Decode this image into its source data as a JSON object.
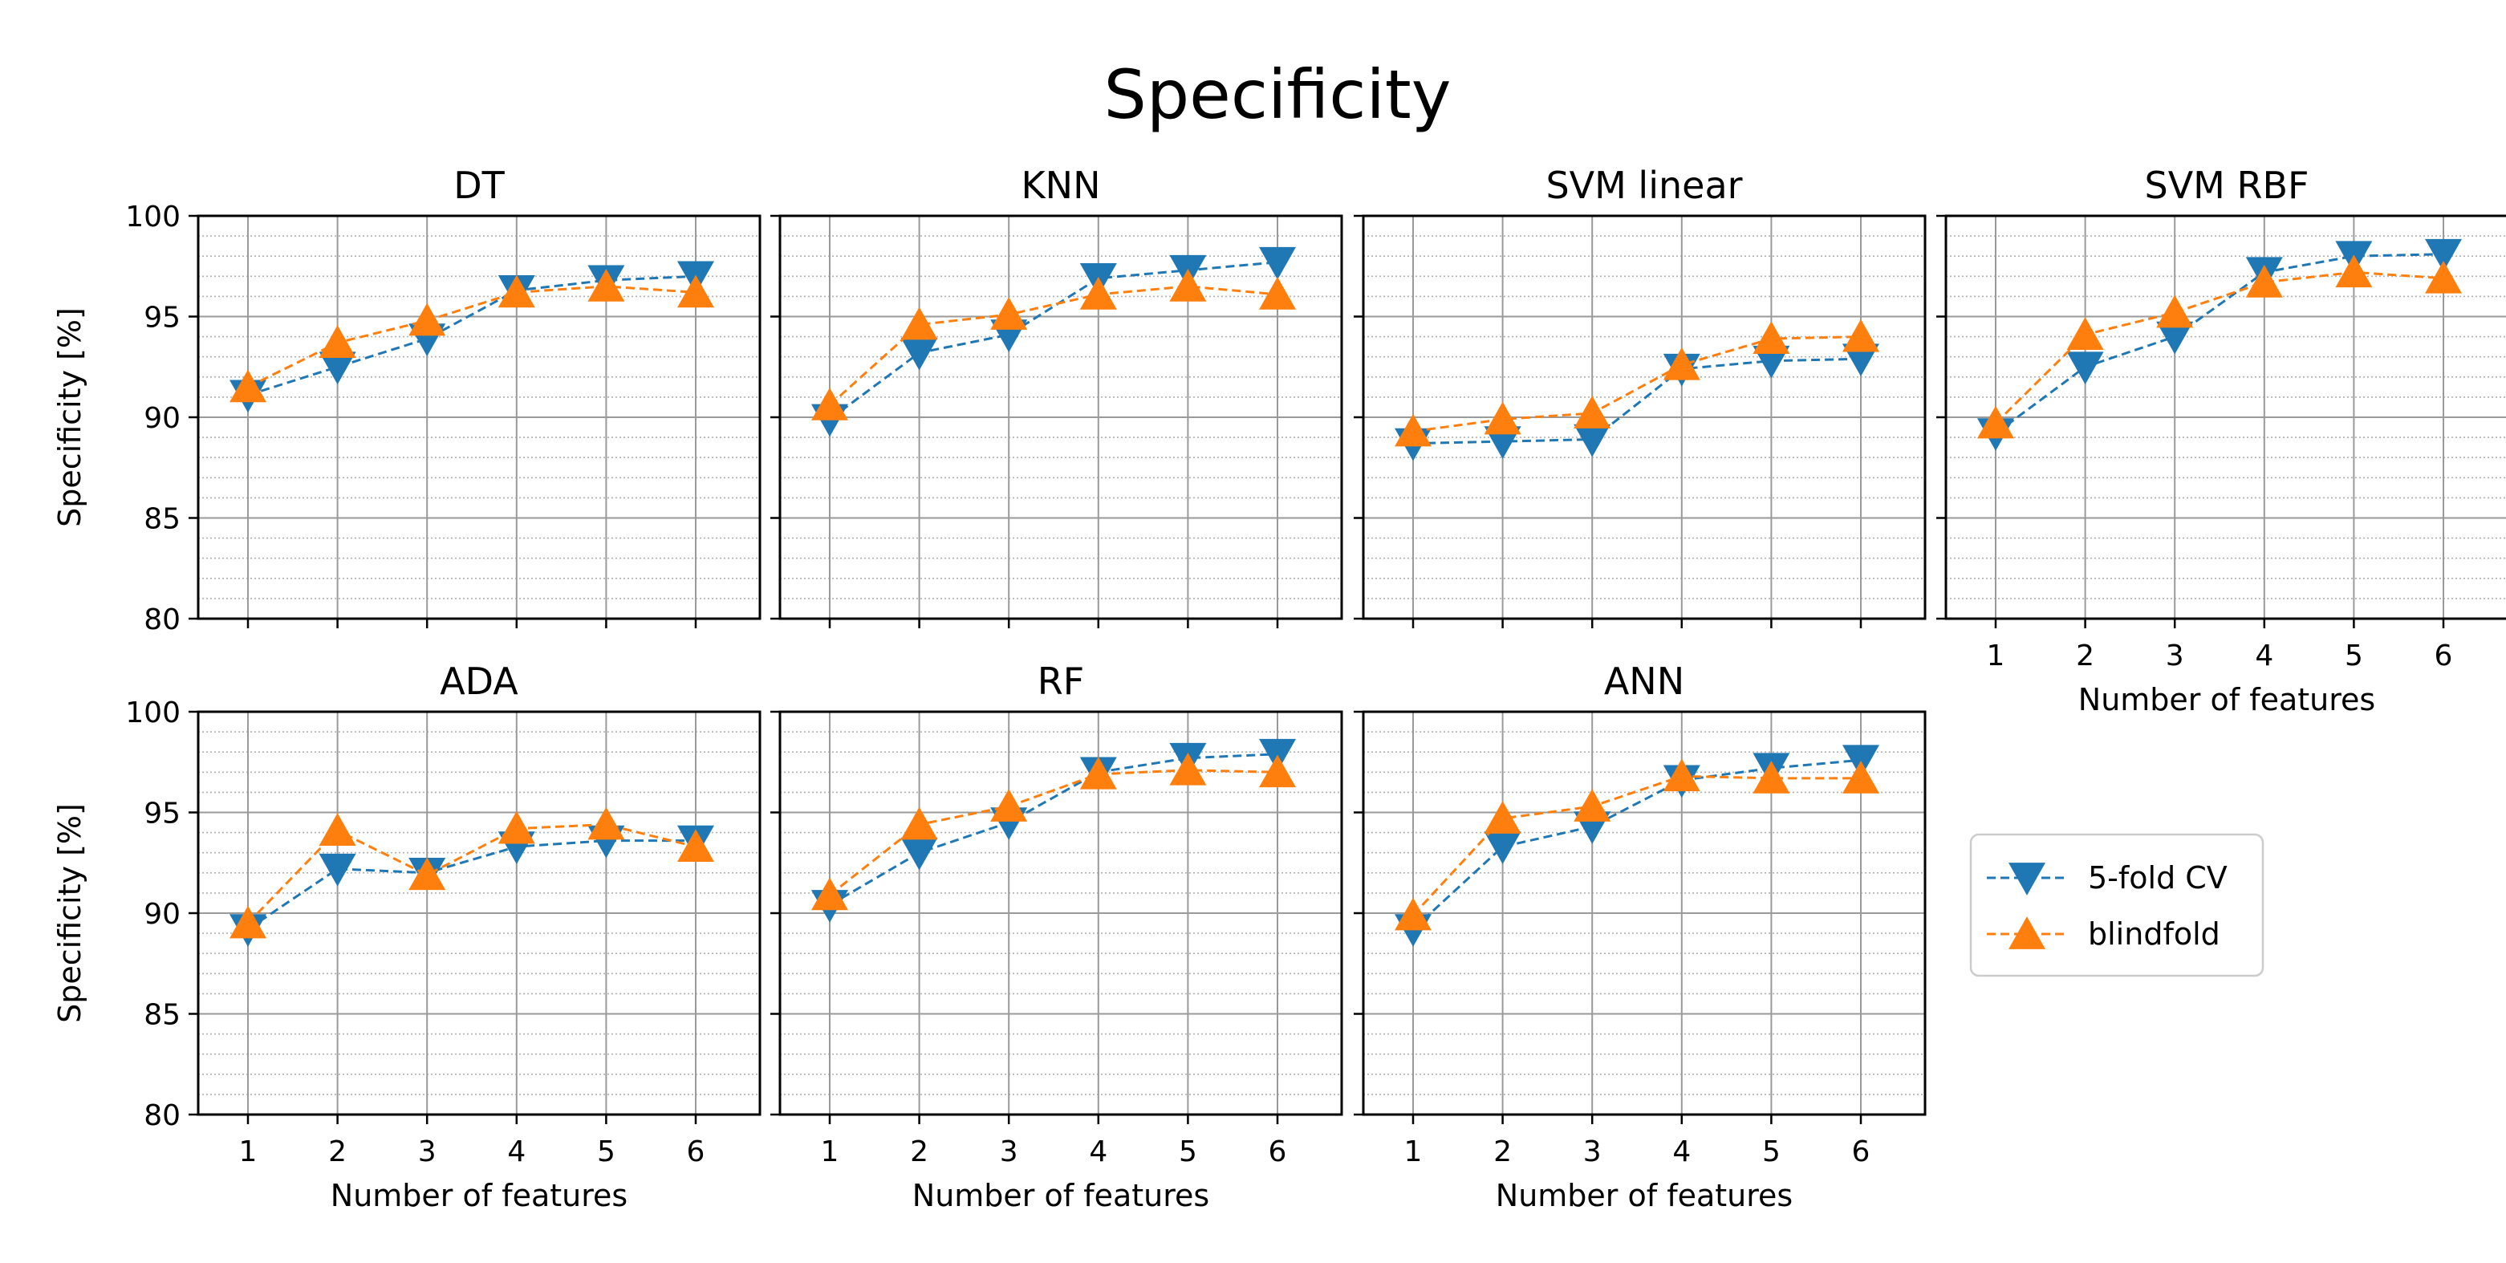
{
  "chart_data": {
    "type": "line",
    "title": "Specificity",
    "xlabel": "Number of features",
    "ylabel": "Specificity [%]",
    "x": [
      1,
      2,
      3,
      4,
      5,
      6
    ],
    "ylim": [
      80,
      100
    ],
    "yticks": [
      80,
      85,
      90,
      95,
      100
    ],
    "xticks": [
      1,
      2,
      3,
      4,
      5,
      6
    ],
    "grid": true,
    "legend_position": "right",
    "series_styles": [
      {
        "name": "5-fold CV",
        "color": "#1f77b4",
        "marker": "triangle-down",
        "linestyle": "dashed"
      },
      {
        "name": "blindfold",
        "color": "#ff7f0e",
        "marker": "triangle-up",
        "linestyle": "dashed"
      }
    ],
    "panels": [
      {
        "title": "DT",
        "series": [
          {
            "name": "5-fold CV",
            "values": [
              91.1,
              92.5,
              93.9,
              96.3,
              96.8,
              97.0
            ]
          },
          {
            "name": "blindfold",
            "values": [
              91.5,
              93.7,
              94.8,
              96.2,
              96.5,
              96.2
            ]
          }
        ]
      },
      {
        "title": "KNN",
        "series": [
          {
            "name": "5-fold CV",
            "values": [
              89.9,
              93.2,
              94.1,
              96.9,
              97.3,
              97.7
            ]
          },
          {
            "name": "blindfold",
            "values": [
              90.6,
              94.6,
              95.1,
              96.1,
              96.5,
              96.1
            ]
          }
        ]
      },
      {
        "title": "SVM linear",
        "series": [
          {
            "name": "5-fold CV",
            "values": [
              88.7,
              88.8,
              88.9,
              92.4,
              92.8,
              92.9
            ]
          },
          {
            "name": "blindfold",
            "values": [
              89.3,
              89.9,
              90.2,
              92.6,
              93.9,
              94.0
            ]
          }
        ]
      },
      {
        "title": "SVM RBF",
        "series": [
          {
            "name": "5-fold CV",
            "values": [
              89.2,
              92.5,
              94.0,
              97.2,
              98.0,
              98.1
            ]
          },
          {
            "name": "blindfold",
            "values": [
              89.7,
              94.1,
              95.2,
              96.7,
              97.2,
              96.9
            ]
          }
        ]
      },
      {
        "title": "ADA",
        "series": [
          {
            "name": "5-fold CV",
            "values": [
              89.2,
              92.2,
              92.0,
              93.3,
              93.6,
              93.6
            ]
          },
          {
            "name": "blindfold",
            "values": [
              89.5,
              94.1,
              91.9,
              94.2,
              94.4,
              93.3
            ]
          }
        ]
      },
      {
        "title": "RF",
        "series": [
          {
            "name": "5-fold CV",
            "values": [
              90.4,
              93.0,
              94.5,
              97.0,
              97.7,
              97.9
            ]
          },
          {
            "name": "blindfold",
            "values": [
              90.9,
              94.4,
              95.3,
              96.9,
              97.1,
              97.0
            ]
          }
        ]
      },
      {
        "title": "ANN",
        "series": [
          {
            "name": "5-fold CV",
            "values": [
              89.2,
              93.3,
              94.3,
              96.6,
              97.2,
              97.6
            ]
          },
          {
            "name": "blindfold",
            "values": [
              89.9,
              94.7,
              95.3,
              96.8,
              96.7,
              96.7
            ]
          }
        ]
      }
    ]
  }
}
